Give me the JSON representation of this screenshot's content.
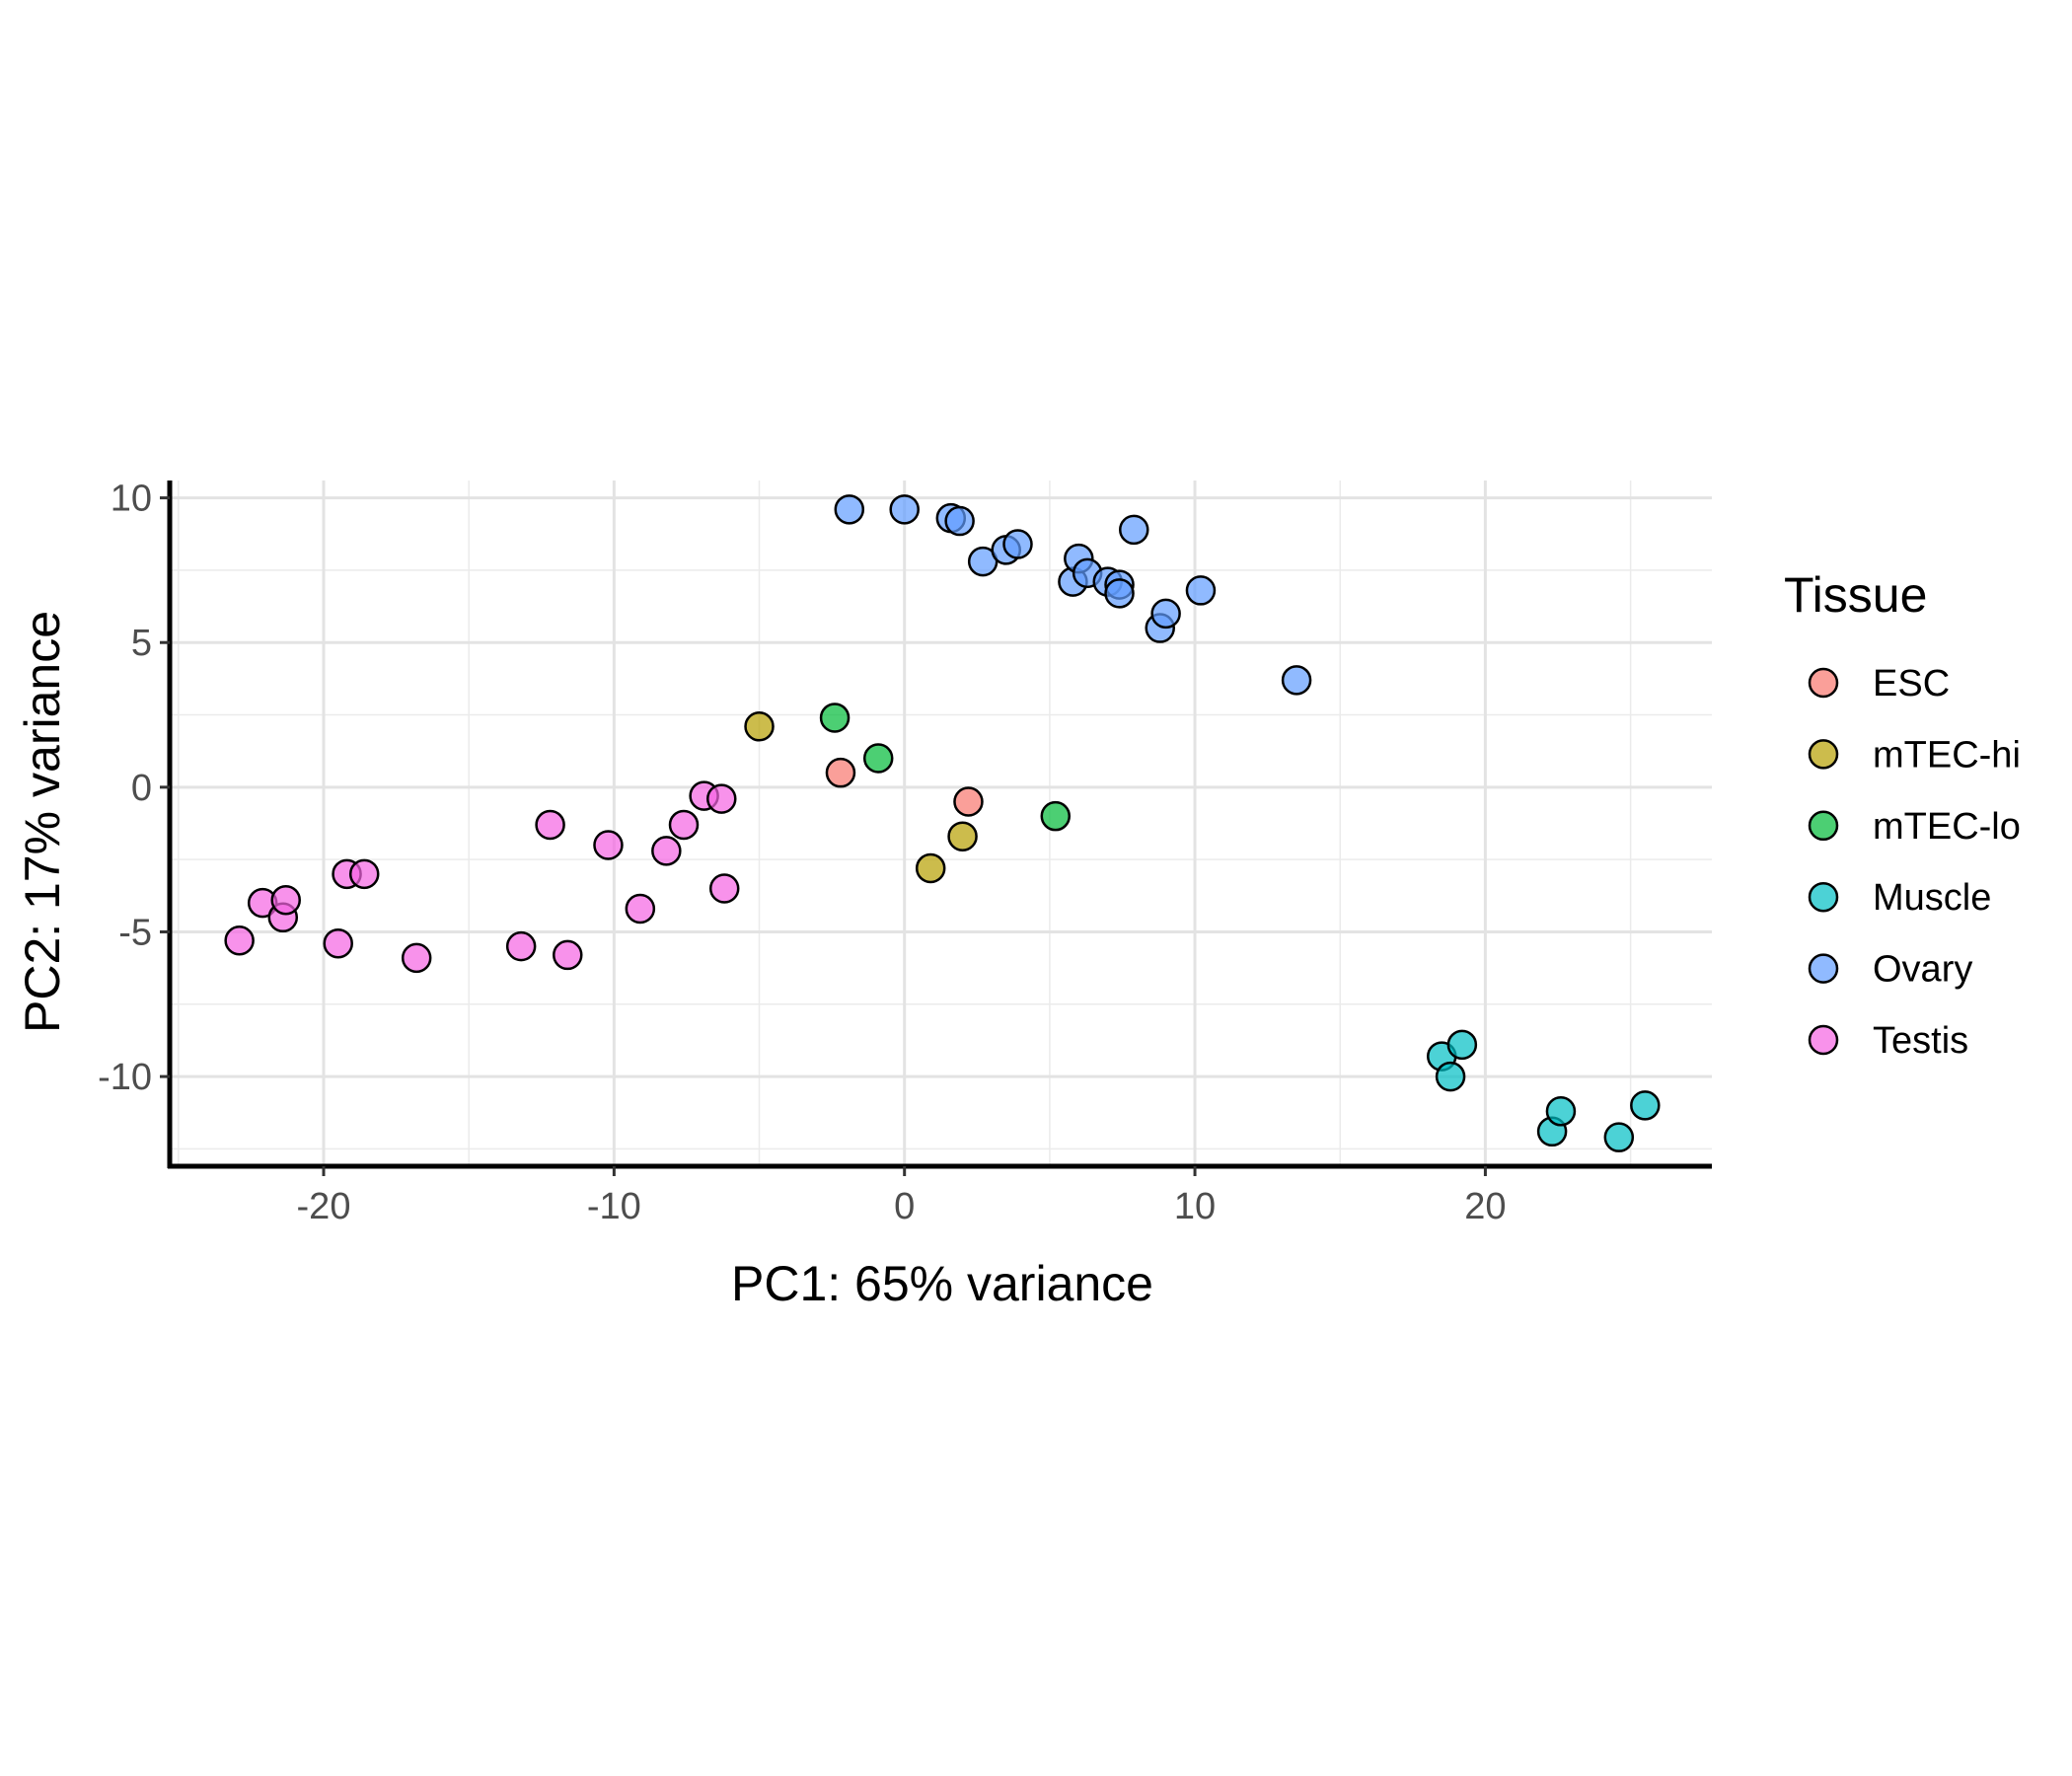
{
  "chart_data": {
    "type": "scatter",
    "xlabel": "PC1: 65% variance",
    "ylabel": "PC2: 17% variance",
    "xlim": [
      -25.3,
      27.8
    ],
    "ylim": [
      -13.1,
      10.6
    ],
    "x_ticks": [
      -20,
      -10,
      0,
      10,
      20
    ],
    "y_ticks": [
      10,
      5,
      0,
      -5,
      -10
    ],
    "x_tick_labels": [
      "-20",
      "-10",
      "0",
      "10",
      "20"
    ],
    "y_tick_labels": [
      "10",
      "5",
      "0",
      "-5",
      "-10"
    ],
    "grid": true,
    "legend": {
      "title": "Tissue",
      "position": "right"
    },
    "series": [
      {
        "name": "ESC",
        "color": "#F8766D",
        "points": [
          [
            -2.2,
            0.5
          ],
          [
            2.2,
            -0.5
          ]
        ]
      },
      {
        "name": "mTEC-hi",
        "color": "#B79F00",
        "points": [
          [
            -5.0,
            2.1
          ],
          [
            0.9,
            -2.8
          ],
          [
            2.0,
            -1.7
          ]
        ]
      },
      {
        "name": "mTEC-lo",
        "color": "#00BA38",
        "points": [
          [
            -2.4,
            2.4
          ],
          [
            -0.9,
            1.0
          ],
          [
            5.2,
            -1.0
          ]
        ]
      },
      {
        "name": "Muscle",
        "color": "#00BFC4",
        "points": [
          [
            18.5,
            -9.3
          ],
          [
            18.8,
            -10.0
          ],
          [
            19.2,
            -8.9
          ],
          [
            22.3,
            -11.9
          ],
          [
            22.6,
            -11.2
          ],
          [
            24.6,
            -12.1
          ],
          [
            25.5,
            -11.0
          ]
        ]
      },
      {
        "name": "Ovary",
        "color": "#619CFF",
        "points": [
          [
            -1.9,
            9.6
          ],
          [
            0.0,
            9.6
          ],
          [
            1.6,
            9.3
          ],
          [
            1.9,
            9.2
          ],
          [
            2.7,
            7.8
          ],
          [
            3.5,
            8.2
          ],
          [
            3.9,
            8.4
          ],
          [
            5.8,
            7.1
          ],
          [
            6.0,
            7.9
          ],
          [
            6.3,
            7.4
          ],
          [
            7.0,
            7.1
          ],
          [
            7.4,
            7.0
          ],
          [
            7.4,
            6.7
          ],
          [
            7.9,
            8.9
          ],
          [
            8.8,
            5.5
          ],
          [
            9.0,
            6.0
          ],
          [
            10.2,
            6.8
          ],
          [
            13.5,
            3.7
          ]
        ]
      },
      {
        "name": "Testis",
        "color": "#F564E3",
        "points": [
          [
            -22.9,
            -5.3
          ],
          [
            -22.1,
            -4.0
          ],
          [
            -21.4,
            -4.5
          ],
          [
            -21.3,
            -3.9
          ],
          [
            -19.5,
            -5.4
          ],
          [
            -19.2,
            -3.0
          ],
          [
            -18.6,
            -3.0
          ],
          [
            -16.8,
            -5.9
          ],
          [
            -13.2,
            -5.5
          ],
          [
            -12.2,
            -1.3
          ],
          [
            -11.6,
            -5.8
          ],
          [
            -10.2,
            -2.0
          ],
          [
            -9.1,
            -4.2
          ],
          [
            -8.2,
            -2.2
          ],
          [
            -7.6,
            -1.3
          ],
          [
            -6.9,
            -0.3
          ],
          [
            -6.3,
            -0.4
          ],
          [
            -6.2,
            -3.5
          ]
        ]
      }
    ]
  }
}
